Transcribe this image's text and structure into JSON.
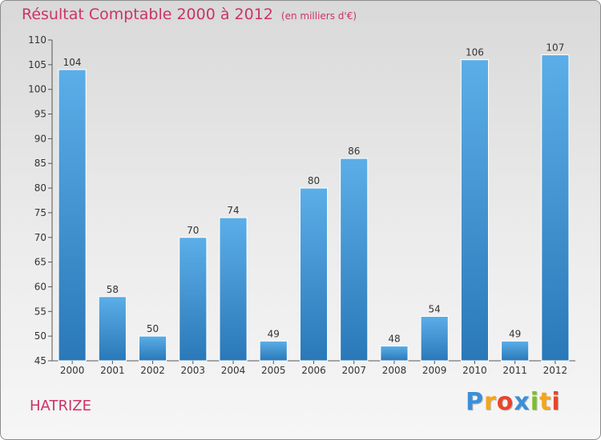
{
  "header": {
    "title": "Résultat Comptable 2000 à 2012",
    "unit": "(en milliers d'€)"
  },
  "footer": {
    "town": "HATRIZE",
    "logo_letters": [
      {
        "ch": "P",
        "color": "#3b8fd8"
      },
      {
        "ch": "r",
        "color": "#f2a61c"
      },
      {
        "ch": "o",
        "color": "#e8452c"
      },
      {
        "ch": "x",
        "color": "#3b8fd8"
      },
      {
        "ch": "i",
        "color": "#7cbf2c"
      },
      {
        "ch": "t",
        "color": "#f2a61c"
      },
      {
        "ch": "i",
        "color": "#e8452c"
      }
    ]
  },
  "chart_data": {
    "type": "bar",
    "title": "Résultat Comptable 2000 à 2012",
    "subtitle": "(en milliers d'€)",
    "categories": [
      "2000",
      "2001",
      "2002",
      "2003",
      "2004",
      "2005",
      "2006",
      "2007",
      "2008",
      "2009",
      "2010",
      "2011",
      "2012"
    ],
    "values": [
      104,
      58,
      50,
      70,
      74,
      49,
      80,
      86,
      48,
      54,
      106,
      49,
      107
    ],
    "ylim": [
      45,
      110
    ],
    "yticks": [
      45,
      50,
      55,
      60,
      65,
      70,
      75,
      80,
      85,
      90,
      95,
      100,
      105,
      110
    ],
    "grid": false,
    "colors": {
      "bar_top": "#5baee8",
      "bar_bottom": "#2a78b8",
      "axis": "#555555"
    }
  }
}
